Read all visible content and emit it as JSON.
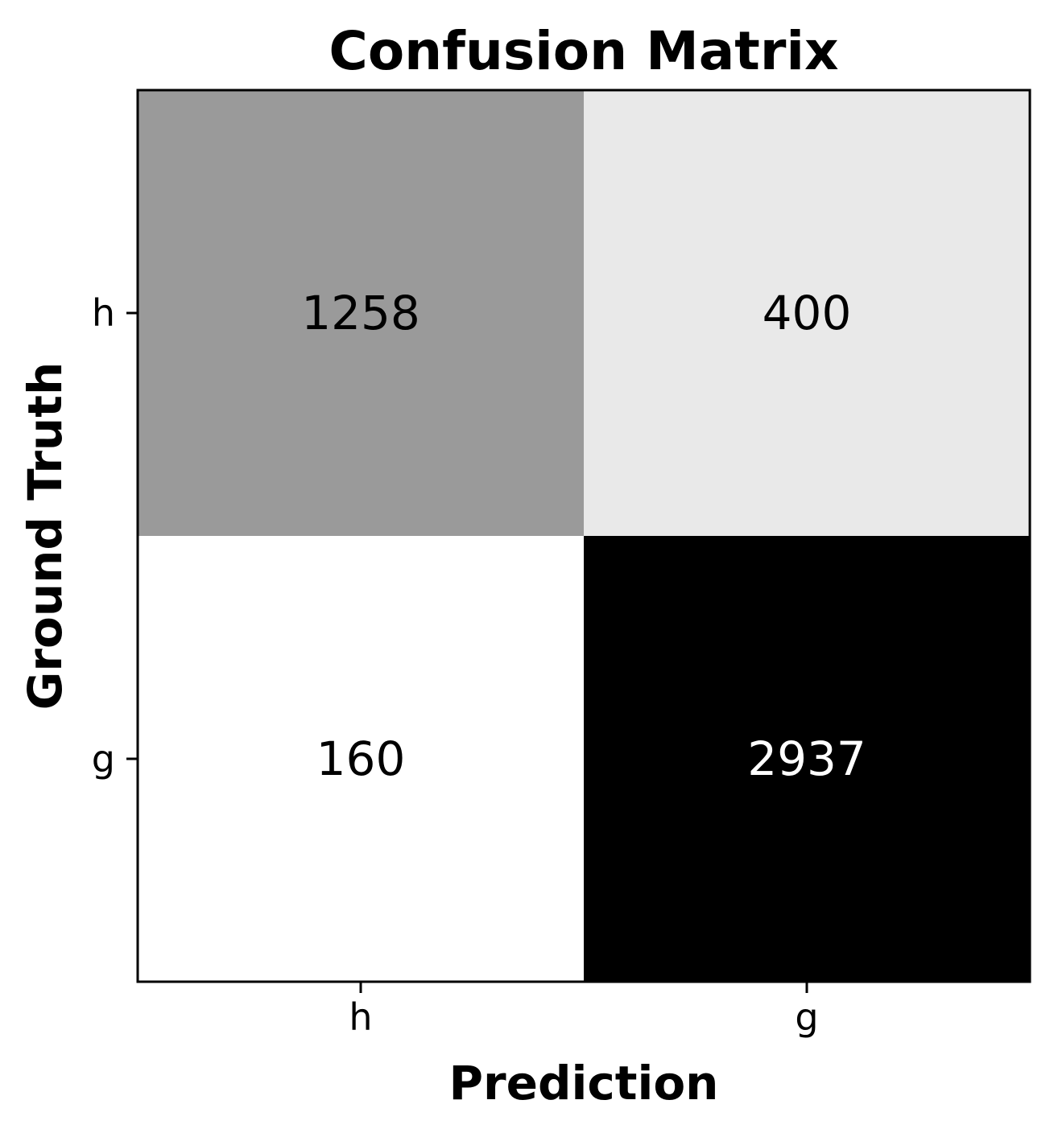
{
  "chart_data": {
    "type": "heatmap",
    "title": "Confusion Matrix",
    "xlabel": "Prediction",
    "ylabel": "Ground Truth",
    "x_categories": [
      "h",
      "g"
    ],
    "y_categories": [
      "h",
      "g"
    ],
    "values": [
      [
        1258,
        400
      ],
      [
        160,
        2937
      ]
    ],
    "colormap": "Greys",
    "colors": {
      "low": "#ffffff",
      "high": "#000000",
      "text_dark": "#000000",
      "text_light": "#ffffff"
    },
    "grid": false,
    "colorbar": false
  }
}
